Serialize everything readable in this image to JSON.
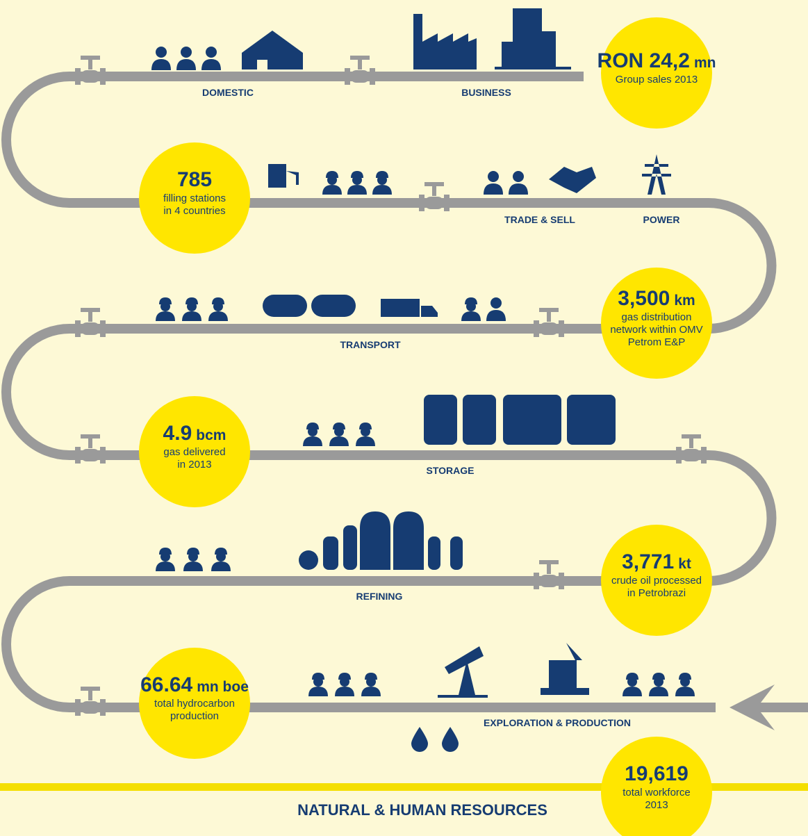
{
  "stages": [
    {
      "label": "DOMESTIC"
    },
    {
      "label": "BUSINESS"
    },
    {
      "label": "TRADE & SELL"
    },
    {
      "label": "POWER"
    },
    {
      "label": "TRANSPORT"
    },
    {
      "label": "STORAGE"
    },
    {
      "label": "REFINING"
    },
    {
      "label": "EXPLORATION & PRODUCTION"
    }
  ],
  "stats": [
    {
      "value": "RON 24,2",
      "unit": "mn",
      "caption": [
        "Group sales 2013"
      ]
    },
    {
      "value": "785",
      "caption": [
        "filling stations",
        "in 4 countries"
      ]
    },
    {
      "value": "3,500",
      "unit": "km",
      "caption": [
        "gas distribution",
        "network within OMV",
        "Petrom E&P"
      ]
    },
    {
      "value": "4.9",
      "unit": "bcm",
      "caption": [
        "gas delivered",
        "in 2013"
      ]
    },
    {
      "value": "3,771",
      "unit": "kt",
      "caption": [
        "crude oil processed",
        "in Petrobrazi"
      ]
    },
    {
      "value": "66.64",
      "unit": "mn boe",
      "caption": [
        "total hydrocarbon",
        "production"
      ]
    },
    {
      "value": "19,619",
      "caption": [
        "total workforce",
        "2013"
      ]
    }
  ],
  "footer": "NATURAL & HUMAN RESOURCES"
}
